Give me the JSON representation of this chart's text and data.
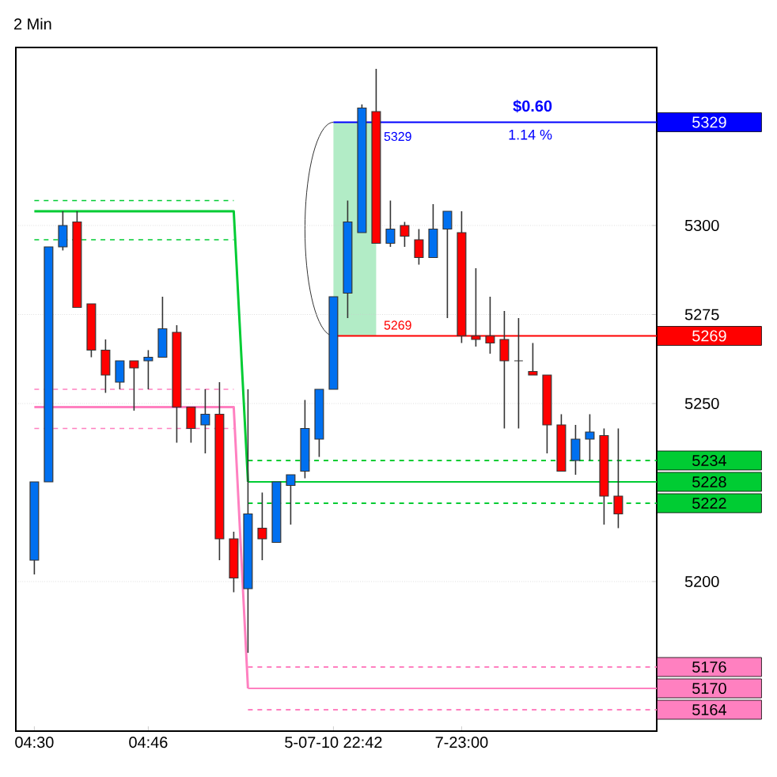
{
  "chart_data": {
    "type": "candlestick",
    "title": "2 Min",
    "categories": [
      "04:30",
      null,
      null,
      null,
      null,
      null,
      null,
      null,
      "04:46",
      null,
      null,
      null,
      null,
      null,
      null,
      null,
      null,
      null,
      null,
      null,
      null,
      "5-07-10 22:42",
      null,
      null,
      null,
      null,
      null,
      null,
      null,
      null,
      "7-23:00",
      null,
      null,
      null,
      null,
      null,
      null,
      null,
      null,
      null,
      null,
      null
    ],
    "ohlc": [
      [
        5206,
        5228,
        5202,
        5228
      ],
      [
        5228,
        5294,
        5228,
        5294
      ],
      [
        5294,
        5304,
        5293,
        5300
      ],
      [
        5301,
        5304,
        5277,
        5277
      ],
      [
        5278,
        5278,
        5263,
        5265
      ],
      [
        5265,
        5268,
        5253,
        5258
      ],
      [
        5256,
        5262,
        5254,
        5262
      ],
      [
        5262,
        5262,
        5248,
        5260
      ],
      [
        5262,
        5265,
        5254,
        5263
      ],
      [
        5263,
        5280,
        5263,
        5271
      ],
      [
        5270,
        5272,
        5239,
        5249
      ],
      [
        5249,
        5249,
        5239,
        5243
      ],
      [
        5244,
        5254,
        5236,
        5247
      ],
      [
        5247,
        5256,
        5206,
        5212
      ],
      [
        5212,
        5214,
        5197,
        5201
      ],
      [
        5198,
        5254,
        5180,
        5219
      ],
      [
        5215,
        5225,
        5206,
        5212
      ],
      [
        5211,
        5228,
        5211,
        5228
      ],
      [
        5227,
        5230,
        5216,
        5230
      ],
      [
        5231,
        5251,
        5229,
        5243
      ],
      [
        5240,
        5254,
        5235,
        5254
      ],
      [
        5254,
        5280,
        5254,
        5280
      ],
      [
        5281,
        5307,
        5274,
        5301
      ],
      [
        5298,
        5334,
        5298,
        5333
      ],
      [
        5332,
        5344,
        5295,
        5295
      ],
      [
        5295,
        5307,
        5294,
        5299
      ],
      [
        5300,
        5301,
        5294,
        5297
      ],
      [
        5296,
        5299,
        5289,
        5291
      ],
      [
        5291,
        5306,
        5291,
        5299
      ],
      [
        5299,
        5304,
        5274,
        5304
      ],
      [
        5298,
        5304,
        5267,
        5269
      ],
      [
        5269,
        5288,
        5266,
        5268
      ],
      [
        5269,
        5280,
        5264,
        5267
      ],
      [
        5268,
        5276,
        5243,
        5262
      ],
      [
        5262,
        5274,
        5243,
        5262
      ],
      [
        5259,
        5267,
        5258,
        5258
      ],
      [
        5258,
        5258,
        5236,
        5244
      ],
      [
        5244,
        5247,
        5231,
        5231
      ],
      [
        5234,
        5244,
        5230,
        5240
      ],
      [
        5240,
        5247,
        5234,
        5242
      ],
      [
        5241,
        5243,
        5216,
        5224
      ],
      [
        5224,
        5243,
        5215,
        5219
      ]
    ],
    "colors": [
      "#0070f0",
      "#0070f0",
      "#0070f0",
      "#ff0000",
      "#ff0000",
      "#ff0000",
      "#0070f0",
      "#ff0000",
      "#0070f0",
      "#0070f0",
      "#ff0000",
      "#ff0000",
      "#0070f0",
      "#ff0000",
      "#ff0000",
      "#0070f0",
      "#ff0000",
      "#0070f0",
      "#0070f0",
      "#0070f0",
      "#0070f0",
      "#0070f0",
      "#0070f0",
      "#0070f0",
      "#ff0000",
      "#0070f0",
      "#ff0000",
      "#ff0000",
      "#0070f0",
      "#0070f0",
      "#ff0000",
      "#ff0000",
      "#ff0000",
      "#ff0000",
      "#333333",
      "#ff0000",
      "#ff0000",
      "#ff0000",
      "#0070f0",
      "#0070f0",
      "#ff0000",
      "#ff0000"
    ],
    "series": [
      {
        "type": "line",
        "color": "#00cc33",
        "line_style": "solid",
        "values": [
          5304,
          5304,
          5304,
          5304,
          5304,
          5304,
          5304,
          5304,
          5304,
          5304,
          5304,
          5304,
          5304,
          5304,
          5304,
          5228,
          null,
          null,
          null,
          null,
          null,
          null,
          null,
          null,
          null,
          null,
          null,
          null,
          null,
          null,
          null,
          null,
          null,
          null,
          null,
          null,
          null,
          null,
          null,
          null,
          null,
          null
        ]
      },
      {
        "type": "line",
        "color": "#00cc33",
        "line_style": "dashed",
        "values": [
          5307,
          5307,
          5307,
          5307,
          5307,
          5307,
          5307,
          5307,
          5307,
          5307,
          5307,
          5307,
          5307,
          5307,
          5307,
          null,
          null,
          null,
          null,
          null,
          null,
          null,
          null,
          null,
          null,
          null,
          null,
          null,
          null,
          null,
          null,
          null,
          null,
          null,
          null,
          null,
          null,
          null,
          null,
          null,
          null,
          null
        ]
      },
      {
        "type": "line",
        "color": "#00cc33",
        "line_style": "dashed",
        "values": [
          5296,
          5296,
          5296,
          5296,
          5296,
          5296,
          5296,
          5296,
          5296,
          5296,
          5296,
          5296,
          5296,
          5296,
          5296,
          null,
          null,
          null,
          null,
          null,
          null,
          null,
          null,
          null,
          null,
          null,
          null,
          null,
          null,
          null,
          null,
          null,
          null,
          null,
          null,
          null,
          null,
          null,
          null,
          null,
          null,
          null
        ]
      },
      {
        "type": "line",
        "color": "#ff80c0",
        "line_style": "solid",
        "values": [
          5249,
          5249,
          5249,
          5249,
          5249,
          5249,
          5249,
          5249,
          5249,
          5249,
          5249,
          5249,
          5249,
          5249,
          5249,
          5170,
          null,
          null,
          null,
          null,
          null,
          null,
          null,
          null,
          null,
          null,
          null,
          null,
          null,
          null,
          null,
          null,
          null,
          null,
          null,
          null,
          null,
          null,
          null,
          null,
          null,
          null
        ]
      },
      {
        "type": "line",
        "color": "#ff80c0",
        "line_style": "dashed",
        "values": [
          5254,
          5254,
          5254,
          5254,
          5254,
          5254,
          5254,
          5254,
          5254,
          5254,
          5254,
          5254,
          5254,
          5254,
          5254,
          null,
          null,
          null,
          null,
          null,
          null,
          null,
          null,
          null,
          null,
          null,
          null,
          null,
          null,
          null,
          null,
          null,
          null,
          null,
          null,
          null,
          null,
          null,
          null,
          null,
          null,
          null
        ]
      },
      {
        "type": "line",
        "color": "#ff80c0",
        "line_style": "dashed",
        "values": [
          5243,
          5243,
          5243,
          5243,
          5243,
          5243,
          5243,
          5243,
          5243,
          5243,
          5243,
          5243,
          5243,
          5243,
          5243,
          null,
          null,
          null,
          null,
          null,
          null,
          null,
          null,
          null,
          null,
          null,
          null,
          null,
          null,
          null,
          null,
          null,
          null,
          null,
          null,
          null,
          null,
          null,
          null,
          null,
          null,
          null
        ]
      }
    ],
    "ref_lines": [
      {
        "axis": "y",
        "value": 5329,
        "label": "5329",
        "color": "#0000ff",
        "line_style": "solid"
      },
      {
        "axis": "y",
        "value": 5269,
        "label": "5269",
        "color": "#ff0000",
        "line_style": "solid"
      },
      {
        "axis": "y",
        "value": 5234,
        "label": "5234",
        "color": "#00cc33",
        "line_style": "dashed"
      },
      {
        "axis": "y",
        "value": 5228,
        "label": "5228",
        "color": "#00cc33",
        "line_style": "solid"
      },
      {
        "axis": "y",
        "value": 5222,
        "label": "5222",
        "color": "#00cc33",
        "line_style": "dashed"
      },
      {
        "axis": "y",
        "value": 5176,
        "label": "5176",
        "color": "#ff80c0",
        "line_style": "dashed"
      },
      {
        "axis": "y",
        "value": 5170,
        "label": "5170",
        "color": "#ff80c0",
        "line_style": "solid"
      },
      {
        "axis": "y",
        "value": 5164,
        "label": "5164",
        "color": "#ff80c0",
        "line_style": "dashed"
      }
    ],
    "annotations": [
      "$0.60",
      "1.14 %",
      "5329",
      "5269"
    ],
    "ylim": [
      5158,
      5350
    ],
    "yticks": [
      5200,
      5250,
      5275,
      5300
    ],
    "grid": "y"
  }
}
